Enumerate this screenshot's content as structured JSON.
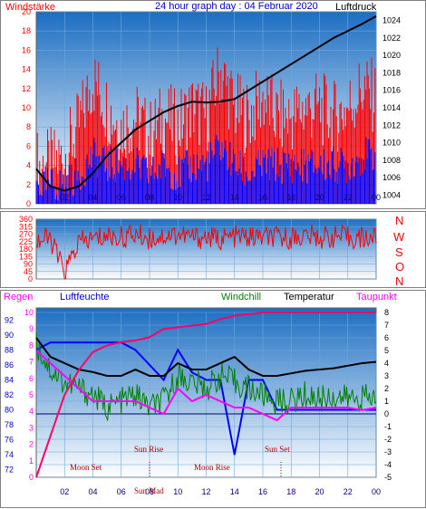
{
  "header": {
    "title": "24 hour graph day : 04 Februar 2020",
    "left_label": "Windstärke",
    "right_label": "Luftdruck"
  },
  "compass": [
    "N",
    "W",
    "S",
    "O",
    "N"
  ],
  "bottom_legend": {
    "regen": "Regen",
    "luftfeuchte": "Luftfeuchte",
    "windchill": "Windchill",
    "temperatur": "Temperatur",
    "taupunkt": "Taupunkt"
  },
  "annotations": {
    "moon_set": "Moon Set",
    "sun_rise": "Sun Rise",
    "moon_rise": "Moon Rise",
    "sun_set": "Sun Set",
    "sun_nomad": "Sun Mad"
  },
  "colors": {
    "wind_gust": "#ff0000",
    "wind_avg": "#0000ff",
    "pressure": "#000000",
    "direction": "#ff0000",
    "humidity": "#0000ff",
    "windchill": "#008000",
    "temperature": "#000000",
    "dewpoint": "#ff00ff",
    "rain": "#ff0066",
    "label_red": "#ff0000",
    "label_blue": "#0000cc",
    "label_green": "#008000",
    "label_magenta": "#ff00ff"
  },
  "chart_data": [
    {
      "type": "bar",
      "title": "24 hour graph day : 04 Februar 2020",
      "x_ticks": [
        "02",
        "04",
        "06",
        "08",
        "10",
        "12",
        "14",
        "16",
        "18",
        "20",
        "22",
        "00"
      ],
      "left_axis": {
        "label": "Windstärke",
        "ylim": [
          0,
          20
        ],
        "ticks": [
          0,
          2,
          4,
          6,
          8,
          10,
          12,
          14,
          16,
          18,
          20
        ]
      },
      "right_axis": {
        "label": "Luftdruck",
        "ylim": [
          1003,
          1025
        ],
        "ticks": [
          1004,
          1006,
          1008,
          1010,
          1012,
          1014,
          1016,
          1018,
          1020,
          1022,
          1024
        ]
      },
      "series": [
        {
          "name": "Windstärke",
          "style": "bars",
          "hours": [
            0,
            1,
            2,
            3,
            4,
            5,
            6,
            7,
            8,
            9,
            10,
            11,
            12,
            13,
            14,
            15,
            16,
            17,
            18,
            19,
            20,
            21,
            22,
            23,
            24
          ],
          "gust": [
            4,
            4,
            5,
            8,
            13,
            10,
            8,
            9,
            7,
            9,
            8,
            10,
            9,
            14,
            10,
            9,
            11,
            9,
            9,
            10,
            10,
            9,
            10,
            12,
            11
          ],
          "avg": [
            2,
            2,
            2,
            3,
            5,
            4,
            4,
            4,
            3,
            4,
            3,
            4,
            4,
            6,
            4,
            3,
            4,
            4,
            4,
            4,
            4,
            4,
            4,
            5,
            5
          ]
        },
        {
          "name": "Luftdruck",
          "style": "line",
          "hours": [
            0,
            1,
            2,
            3,
            4,
            5,
            6,
            7,
            8,
            9,
            10,
            11,
            12,
            13,
            14,
            15,
            16,
            17,
            18,
            19,
            20,
            21,
            22,
            23,
            24
          ],
          "values": [
            1007,
            1005,
            1004.5,
            1005,
            1006.5,
            1008.5,
            1010,
            1011.5,
            1012.5,
            1013.5,
            1014.2,
            1014.7,
            1014.6,
            1014.7,
            1015,
            1016,
            1017,
            1018,
            1019,
            1020,
            1021,
            1022,
            1022.8,
            1023.6,
            1024.5
          ]
        }
      ]
    },
    {
      "type": "line",
      "series_label_side": [
        "N",
        "W",
        "S",
        "O",
        "N"
      ],
      "left_axis": {
        "ylim": [
          0,
          360
        ],
        "ticks": [
          0,
          45,
          90,
          135,
          180,
          225,
          270,
          315,
          360
        ]
      },
      "series": [
        {
          "name": "Windrichtung",
          "hours": [
            0,
            1,
            2,
            3,
            4,
            5,
            6,
            7,
            8,
            9,
            10,
            11,
            12,
            13,
            14,
            15,
            16,
            17,
            18,
            19,
            20,
            21,
            22,
            23,
            24
          ],
          "values": [
            230,
            240,
            40,
            220,
            240,
            260,
            250,
            270,
            245,
            260,
            270,
            250,
            250,
            240,
            255,
            250,
            250,
            245,
            250,
            260,
            250,
            255,
            250,
            245,
            250
          ]
        }
      ]
    },
    {
      "type": "line",
      "left_axis_regen": {
        "label": "Regen",
        "ylim": [
          0,
          10
        ],
        "ticks": [
          0,
          1,
          2,
          3,
          4,
          5,
          6,
          7,
          8,
          9,
          10
        ]
      },
      "left_axis_luftfeuchte": {
        "label": "Luftfeuchte",
        "ylim": [
          71,
          93
        ],
        "ticks": [
          72,
          74,
          76,
          78,
          80,
          82,
          84,
          86,
          88,
          90,
          92
        ]
      },
      "right_axis": {
        "ylim": [
          -5,
          8
        ],
        "ticks": [
          8,
          7,
          6,
          5,
          4,
          3,
          2,
          1,
          0,
          -1,
          -2,
          -3,
          -4,
          -5
        ]
      },
      "x_ticks": [
        "02",
        "04",
        "06",
        "08",
        "10",
        "12",
        "14",
        "16",
        "18",
        "20",
        "22",
        "00"
      ],
      "series": [
        {
          "name": "Luftfeuchte",
          "axis": "luftfeuchte",
          "hours": [
            0,
            1,
            2,
            3,
            4,
            5,
            6,
            7,
            8,
            9,
            10,
            11,
            12,
            13,
            14,
            15,
            16,
            17,
            18,
            19,
            20,
            21,
            22,
            23,
            24
          ],
          "values": [
            88,
            89,
            89,
            89,
            89,
            89,
            89,
            88,
            86,
            84,
            88,
            85,
            84,
            84,
            74,
            84,
            84,
            80,
            80,
            80,
            80,
            80,
            80,
            80,
            80
          ]
        },
        {
          "name": "Windchill",
          "axis": "temperature",
          "hours": [
            0,
            1,
            2,
            3,
            4,
            5,
            6,
            7,
            8,
            9,
            10,
            11,
            12,
            13,
            14,
            15,
            16,
            17,
            18,
            19,
            20,
            21,
            22,
            23,
            24
          ],
          "values": [
            5.5,
            3.5,
            2.5,
            2,
            1.5,
            0.5,
            1,
            1.5,
            0.5,
            1,
            3,
            2.5,
            2,
            3,
            2.5,
            2,
            1.5,
            1,
            1,
            1.5,
            1.2,
            1.4,
            1.2,
            1.3,
            1.2
          ]
        },
        {
          "name": "Temperatur",
          "axis": "temperature",
          "hours": [
            0,
            1,
            2,
            3,
            4,
            5,
            6,
            7,
            8,
            9,
            10,
            11,
            12,
            13,
            14,
            15,
            16,
            17,
            18,
            19,
            20,
            21,
            22,
            23,
            24
          ],
          "values": [
            6,
            4.5,
            4,
            3.5,
            3.3,
            3,
            3,
            3.5,
            3,
            3,
            4,
            3.5,
            3.5,
            4,
            4.5,
            3.5,
            3,
            3,
            3.2,
            3.4,
            3.5,
            3.6,
            3.8,
            4,
            4.1
          ]
        },
        {
          "name": "Taupunkt",
          "axis": "temperature",
          "hours": [
            0,
            1,
            2,
            3,
            4,
            5,
            6,
            7,
            8,
            9,
            10,
            11,
            12,
            13,
            14,
            15,
            16,
            17,
            18,
            19,
            20,
            21,
            22,
            23,
            24
          ],
          "values": [
            5,
            4,
            3,
            2,
            1,
            1,
            1,
            1,
            0.5,
            0,
            2,
            1,
            1.5,
            1,
            0.5,
            0.5,
            0,
            -0.5,
            0.5,
            0.5,
            0.5,
            0.5,
            0.5,
            0.3,
            0.5
          ]
        },
        {
          "name": "Regen",
          "axis": "regen",
          "hours": [
            0,
            1,
            2,
            3,
            4,
            5,
            6,
            7,
            8,
            9,
            10,
            11,
            12,
            13,
            14,
            15,
            16,
            17,
            18,
            19,
            20,
            21,
            22,
            23,
            24
          ],
          "values": [
            0,
            2.5,
            5,
            6.5,
            7.6,
            8,
            8.2,
            8.3,
            8.5,
            9,
            9.1,
            9.2,
            9.3,
            9.6,
            9.8,
            9.9,
            10,
            10,
            10,
            10,
            10,
            10,
            10,
            10,
            10
          ]
        }
      ]
    }
  ]
}
